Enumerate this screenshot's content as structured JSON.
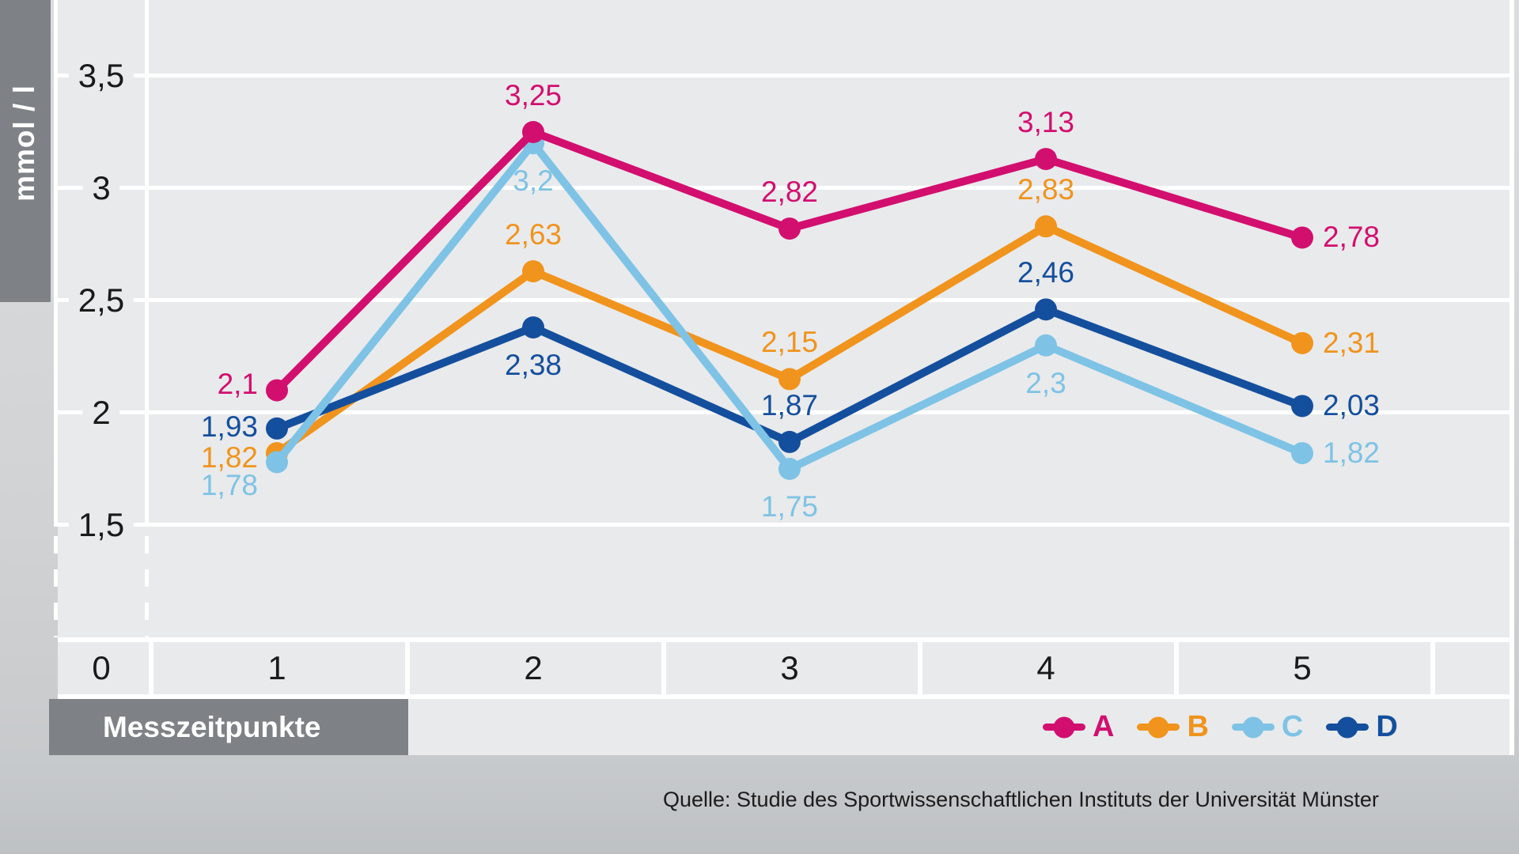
{
  "chart_data": {
    "type": "line",
    "title": "",
    "ylabel": "mmol / l",
    "xlabel": "Messzeitpunkte",
    "x": [
      1,
      2,
      3,
      4,
      5
    ],
    "x_axis_ticks": [
      "0",
      "1",
      "2",
      "3",
      "4",
      "5"
    ],
    "y_ticks": [
      "3,5",
      "3",
      "2,5",
      "2",
      "1,5"
    ],
    "y_tick_values": [
      3.5,
      3.0,
      2.5,
      2.0,
      1.5
    ],
    "ylim": [
      1.0,
      3.75
    ],
    "grid": "horizontal white gridlines on light gray panel",
    "legend_position": "bottom-right",
    "series": [
      {
        "name": "A",
        "color": "#d20f6f",
        "values": [
          2.1,
          3.25,
          2.82,
          3.13,
          2.78
        ],
        "labels": [
          "2,1",
          "3,25",
          "2,82",
          "3,13",
          "2,78"
        ]
      },
      {
        "name": "B",
        "color": "#f0941d",
        "values": [
          1.82,
          2.63,
          2.15,
          2.83,
          2.31
        ],
        "labels": [
          "1,82",
          "2,63",
          "2,15",
          "2,83",
          "2,31"
        ]
      },
      {
        "name": "C",
        "color": "#7ec3e5",
        "values": [
          1.78,
          3.2,
          1.75,
          2.3,
          1.82
        ],
        "labels": [
          "1,78",
          "3,2",
          "1,75",
          "2,3",
          "1,82"
        ]
      },
      {
        "name": "D",
        "color": "#144f9d",
        "values": [
          1.93,
          2.38,
          1.87,
          2.46,
          2.03
        ],
        "labels": [
          "1,93",
          "2,38",
          "1,87",
          "2,46",
          "2,03"
        ]
      }
    ],
    "source": "Quelle: Studie des Sportwissenschaftlichen Instituts der Universität Münster"
  },
  "colors": {
    "plot_bg": "#e9eaec",
    "gridline": "#ffffff",
    "axis_bar": "#7e8287",
    "tick_text": "#1a1a1a"
  }
}
